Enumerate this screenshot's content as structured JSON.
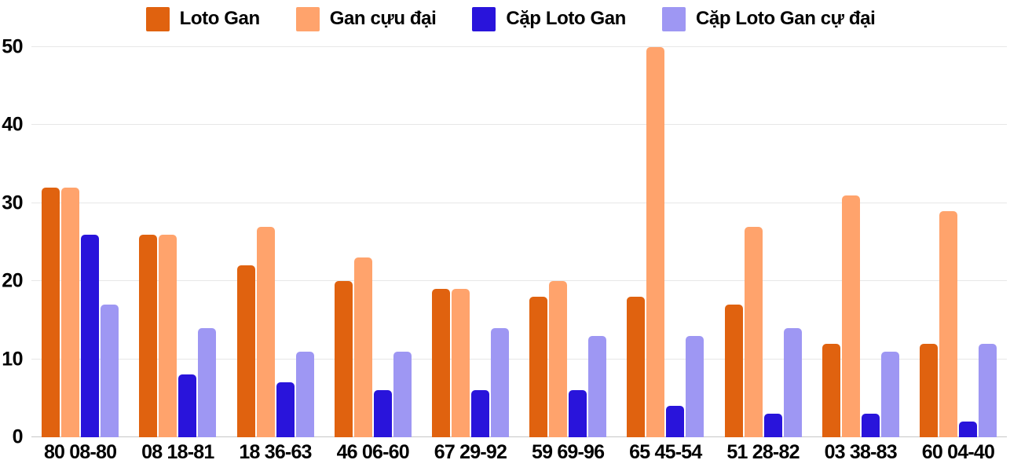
{
  "chart_data": {
    "type": "bar",
    "title": "",
    "xlabel": "",
    "ylabel": "",
    "ylim": [
      0,
      50
    ],
    "y_ticks": [
      0,
      10,
      20,
      30,
      40,
      50
    ],
    "grid": "horizontal",
    "legend_position": "top",
    "background_color": "#ffffff",
    "gridline_color": "#e7e7e7",
    "axis_line_color": "#c6c6c6",
    "text_color": "#000000",
    "categories": [
      "80 08-80",
      "08 18-81",
      "18 36-63",
      "46 06-60",
      "67 29-92",
      "59 69-96",
      "65 45-54",
      "51 28-82",
      "03 38-83",
      "60 04-40"
    ],
    "series": [
      {
        "id": "loto-gan",
        "name": "Loto Gan",
        "color": "#E0620F",
        "values": [
          32,
          26,
          22,
          20,
          19,
          18,
          18,
          17,
          12,
          12
        ]
      },
      {
        "id": "gan-cuu-dai",
        "name": "Gan cựu đại",
        "color": "#FFA36C",
        "values": [
          32,
          26,
          27,
          23,
          19,
          20,
          50,
          27,
          31,
          29
        ]
      },
      {
        "id": "cap-loto-gan",
        "name": "Cặp Loto Gan",
        "color": "#2914DB",
        "values": [
          26,
          8,
          7,
          6,
          6,
          6,
          4,
          3,
          3,
          2
        ]
      },
      {
        "id": "cap-loto-gan-cu-dai",
        "name": "Cặp Loto Gan cự đại",
        "color": "#9E97F3",
        "values": [
          17,
          14,
          11,
          11,
          14,
          13,
          13,
          14,
          11,
          12
        ]
      }
    ]
  }
}
